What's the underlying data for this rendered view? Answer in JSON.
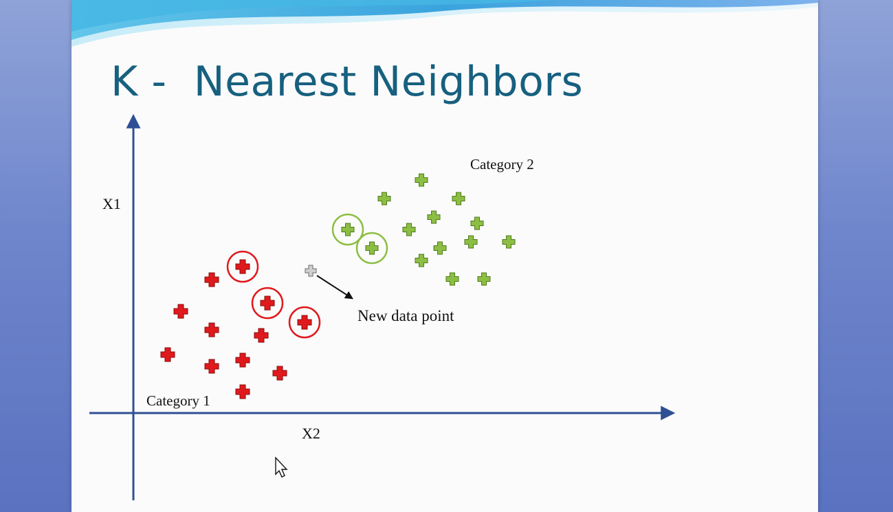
{
  "slide": {
    "title": "K -  Nearest Neighbors",
    "y_axis_label": "X1",
    "x_axis_label": "X2",
    "category1_label": "Category 1",
    "category2_label": "Category 2",
    "new_point_label": "New data point"
  },
  "colors": {
    "title": "#17607f",
    "axis": "#2f4f95",
    "category1": "#e0191d",
    "category2": "#8dbe44",
    "new_point": "#cfcfcf"
  },
  "icons": {
    "category1_marker": "plus-icon",
    "category2_marker": "plus-icon",
    "new_point_marker": "plus-icon",
    "cursor": "mouse-pointer-icon"
  }
}
